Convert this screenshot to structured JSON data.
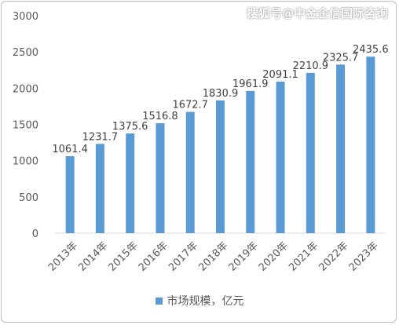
{
  "watermark": "搜狐号@中金企信国际咨询",
  "colors": {
    "bar": "#5b9bd5",
    "axis": "#d9d9d9",
    "text": "#595959"
  },
  "chart_data": {
    "type": "bar",
    "categories": [
      "2013年",
      "2014年",
      "2015年",
      "2016年",
      "2017年",
      "2018年",
      "2019年",
      "2020年",
      "2021年",
      "2022年",
      "2023年"
    ],
    "series": [
      {
        "name": "市场规模，亿元",
        "values": [
          1061.4,
          1231.7,
          1375.6,
          1516.8,
          1672.7,
          1830.9,
          1961.9,
          2091.1,
          2210.9,
          2325.7,
          2435.6
        ]
      }
    ],
    "data_labels": [
      "1061.4",
      "1231.7",
      "1375.6",
      "1516.8",
      "1672.7",
      "1830.9",
      "1961.9",
      "2091.1",
      "2210.9",
      "2325.7",
      "2435.6"
    ],
    "yticks": [
      "0",
      "500",
      "1000",
      "1500",
      "2000",
      "2500",
      "3000"
    ],
    "ylim": [
      0,
      3000
    ],
    "grid": false,
    "legend_position": "bottom"
  }
}
